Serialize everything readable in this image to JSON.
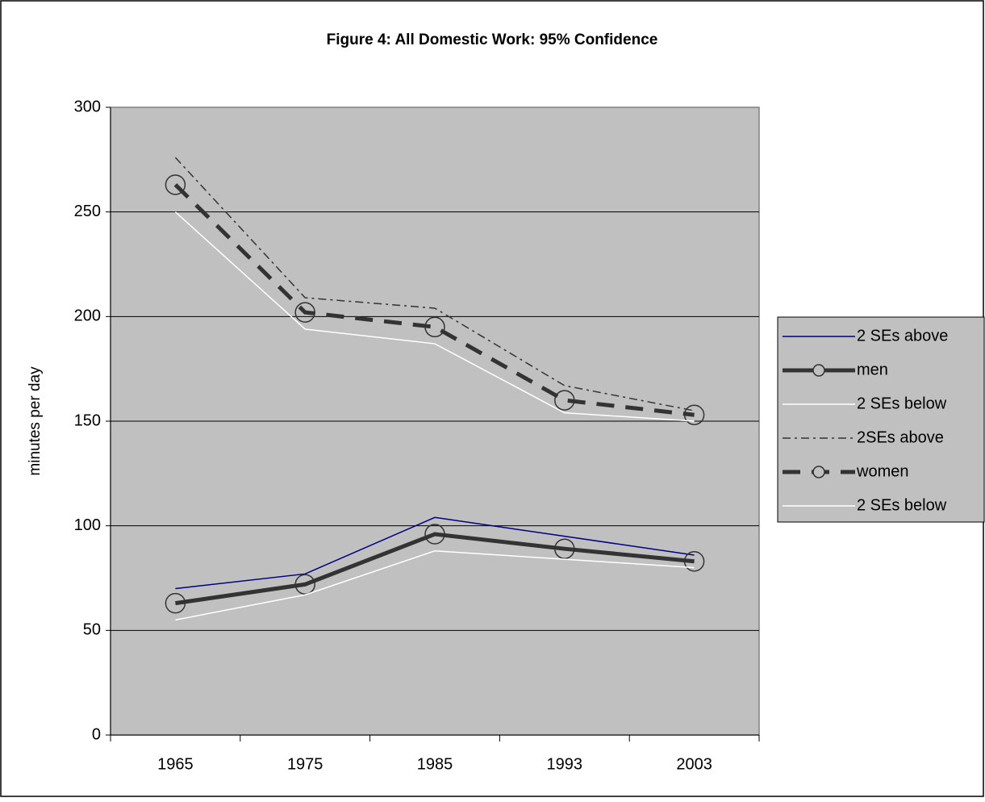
{
  "chart_data": {
    "type": "line",
    "title": "Figure 4:  All Domestic Work: 95% Confidence",
    "y_label": "minutes per day",
    "categories": [
      "1965",
      "1975",
      "1985",
      "1993",
      "2003"
    ],
    "ylim": [
      0,
      300
    ],
    "yticks": [
      0,
      50,
      100,
      150,
      200,
      250,
      300
    ],
    "grid": true,
    "background": "#c0c0c0",
    "legend": "right",
    "series": [
      {
        "name": "2 SEs above",
        "color": "#000080",
        "line_style": "solid",
        "width": 1.5,
        "values": [
          70,
          77,
          104,
          95,
          86
        ]
      },
      {
        "name": "men",
        "color": "#333333",
        "line_style": "solid",
        "width": 5,
        "marker": "circle",
        "values": [
          63,
          72,
          96,
          89,
          83
        ]
      },
      {
        "name": "2 SEs below",
        "color": "#ffffff",
        "line_style": "solid",
        "width": 1.5,
        "values": [
          55,
          67,
          88,
          84,
          80
        ]
      },
      {
        "name": "2SEs above",
        "color": "#333333",
        "line_style": "dashdot",
        "width": 1.5,
        "values": [
          276,
          209,
          204,
          167,
          155
        ]
      },
      {
        "name": "women",
        "color": "#333333",
        "line_style": "dash",
        "width": 5,
        "marker": "circle",
        "values": [
          263,
          202,
          195,
          160,
          153
        ]
      },
      {
        "name": "2 SEs below",
        "color": "#ffffff",
        "line_style": "solid",
        "width": 1.5,
        "values": [
          250,
          194,
          187,
          154,
          150
        ]
      }
    ]
  }
}
